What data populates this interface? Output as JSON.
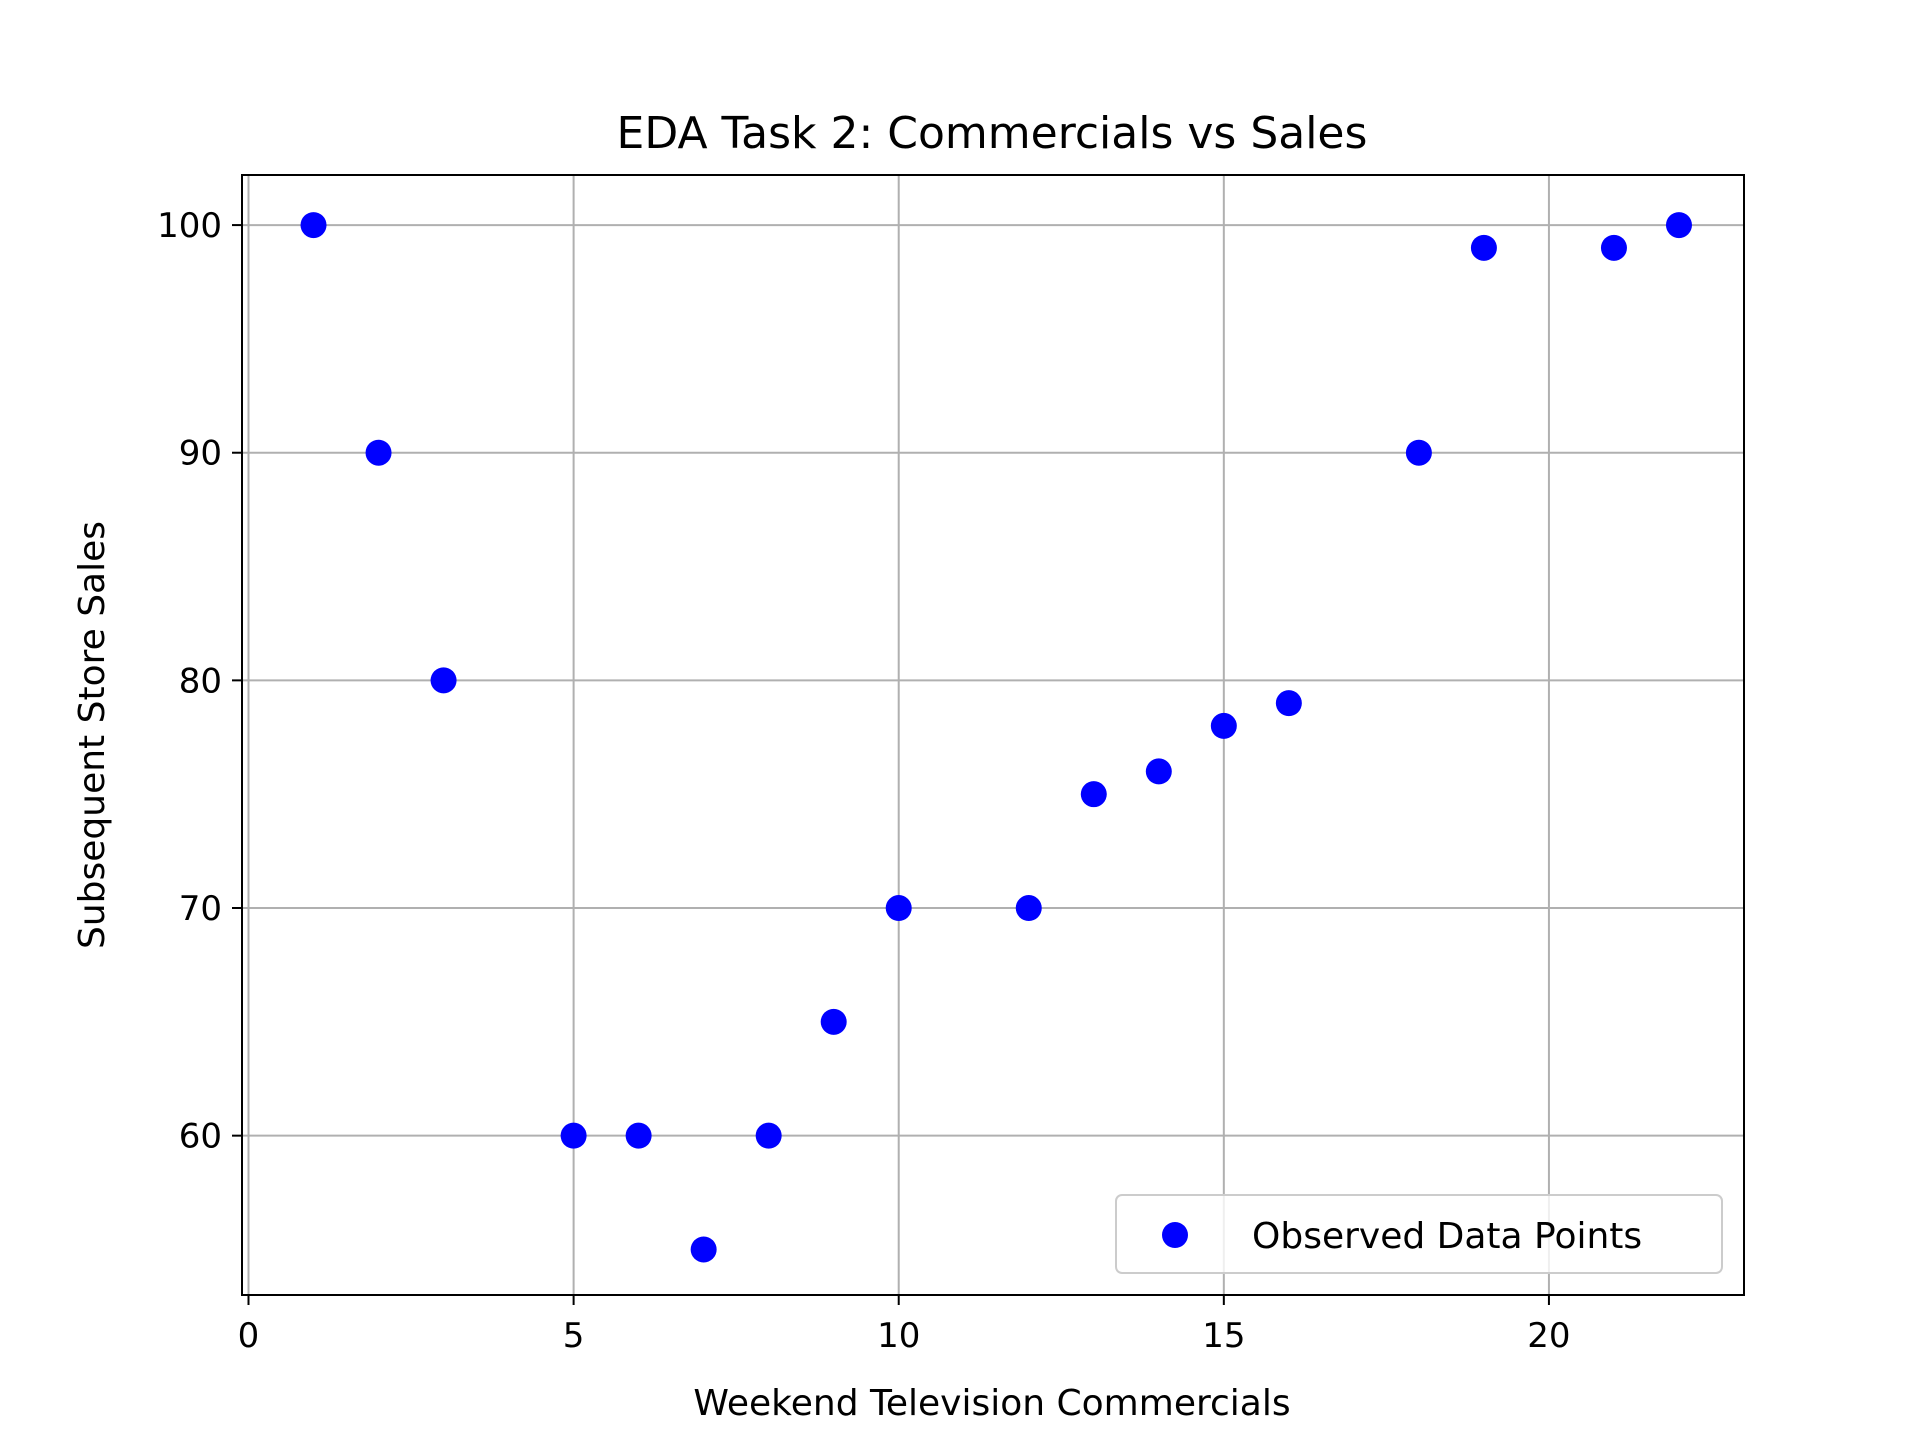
{
  "chart_data": {
    "type": "scatter",
    "title": "EDA Task 2: Commercials vs Sales",
    "xlabel": "Weekend Television Commercials",
    "ylabel": "Subsequent Store Sales",
    "xlim": [
      -0.1,
      23
    ],
    "ylim": [
      53,
      102.2
    ],
    "xticks": [
      0,
      5,
      10,
      15,
      20
    ],
    "yticks": [
      60,
      70,
      80,
      90,
      100
    ],
    "grid": true,
    "legend_position": "lower-right",
    "series": [
      {
        "name": "Observed Data Points",
        "color": "#0000ff",
        "x": [
          1,
          2,
          3,
          5,
          6,
          7,
          8,
          9,
          10,
          12,
          13,
          14,
          15,
          16,
          18,
          19,
          21,
          22
        ],
        "y": [
          100,
          90,
          80,
          60,
          60,
          55,
          60,
          65,
          70,
          70,
          75,
          76,
          78,
          79,
          90,
          99,
          99,
          100
        ]
      }
    ]
  }
}
